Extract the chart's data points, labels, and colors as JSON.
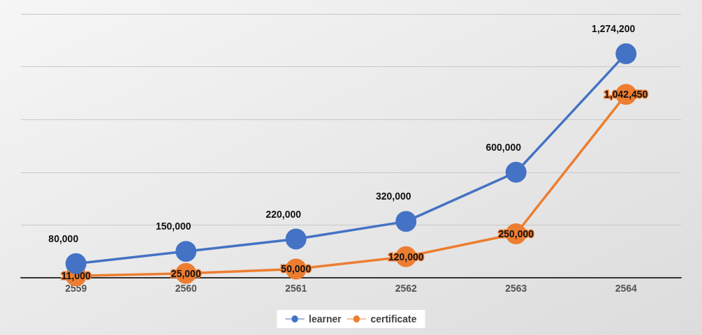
{
  "chart_data": {
    "type": "line",
    "categories": [
      "2559",
      "2560",
      "2561",
      "2562",
      "2563",
      "2564"
    ],
    "series": [
      {
        "name": "learner",
        "color": "#4472c4",
        "values": [
          80000,
          150000,
          220000,
          320000,
          600000,
          1274200
        ],
        "value_labels": [
          "80,000",
          "150,000",
          "220,000",
          "320,000",
          "600,000",
          "1,274,200"
        ]
      },
      {
        "name": "certificate",
        "color": "#ed7d31",
        "values": [
          11000,
          25000,
          50000,
          120000,
          250000,
          1042450
        ],
        "value_labels": [
          "11,000",
          "25,000",
          "50,000",
          "120,000",
          "250,000",
          "1,042,450"
        ]
      }
    ],
    "tick_labels": "x",
    "grid": "y",
    "legend": "bottom",
    "marker": "circle"
  }
}
